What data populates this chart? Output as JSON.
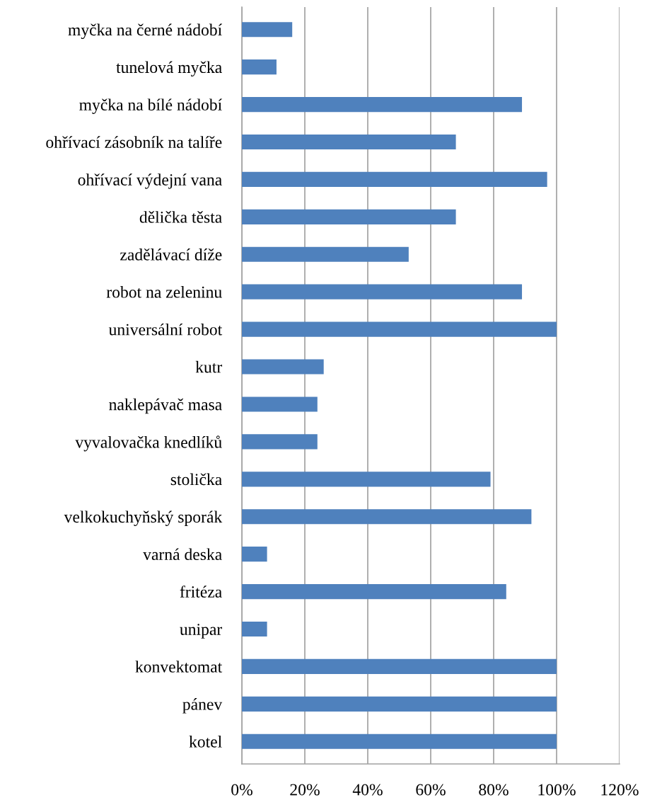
{
  "chart_data": {
    "type": "bar",
    "orientation": "horizontal",
    "categories": [
      "myčka na černé nádobí",
      "tunelová myčka",
      "myčka na bílé nádobí",
      "ohřívací zásobník na talíře",
      "ohřívací výdejní vana",
      "dělička těsta",
      "zadělávací díže",
      "robot na zeleninu",
      "universální robot",
      "kutr",
      "naklepávač masa",
      "vyvalovačka knedlíků",
      "stolička",
      "velkokuchyňský sporák",
      "varná deska",
      "fritéza",
      "unipar",
      "konvektomat",
      "pánev",
      "kotel"
    ],
    "values": [
      16,
      11,
      89,
      68,
      97,
      68,
      53,
      89,
      100,
      26,
      24,
      24,
      79,
      92,
      8,
      84,
      8,
      100,
      100,
      100
    ],
    "color": "#4f81bd",
    "xlim": [
      0,
      120
    ],
    "xticks": [
      {
        "value": 0,
        "label": "0%"
      },
      {
        "value": 20,
        "label": "20%"
      },
      {
        "value": 40,
        "label": "40%"
      },
      {
        "value": 60,
        "label": "60%"
      },
      {
        "value": 80,
        "label": "80%"
      },
      {
        "value": 100,
        "label": "100%"
      },
      {
        "value": 120,
        "label": "120%"
      }
    ],
    "grid": "x",
    "legend": false
  }
}
